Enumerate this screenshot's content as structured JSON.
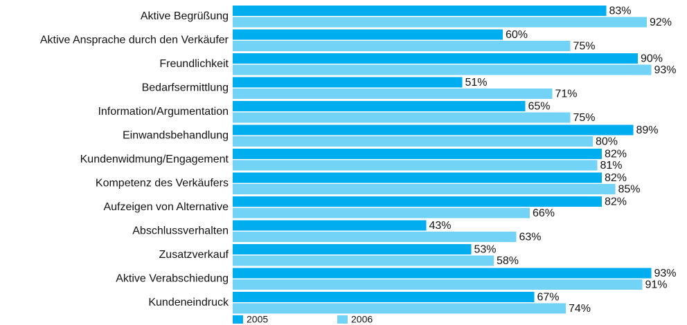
{
  "chart_data": {
    "type": "bar",
    "orientation": "horizontal",
    "categories": [
      "Aktive Begrüßung",
      "Aktive Ansprache durch den Verkäufer",
      "Freundlichkeit",
      "Bedarfsermittlung",
      "Information/Argumentation",
      "Einwandsbehandlung",
      "Kundenwidmung/Engagement",
      "Kompetenz des Verkäufers",
      "Aufzeigen von Alternative",
      "Abschlussverhalten",
      "Zusatzverkauf",
      "Aktive Verabschiedung",
      "Kundeneindruck"
    ],
    "series": [
      {
        "name": "2005",
        "color": "#00aeef",
        "values": [
          83,
          60,
          90,
          51,
          65,
          89,
          82,
          82,
          82,
          43,
          53,
          93,
          67
        ]
      },
      {
        "name": "2006",
        "color": "#72d3f7",
        "values": [
          92,
          75,
          93,
          71,
          75,
          80,
          81,
          85,
          66,
          63,
          58,
          91,
          74
        ]
      }
    ],
    "value_suffix": "%",
    "xlim": [
      0,
      100
    ],
    "grid": false,
    "legend": "bottom-left"
  }
}
